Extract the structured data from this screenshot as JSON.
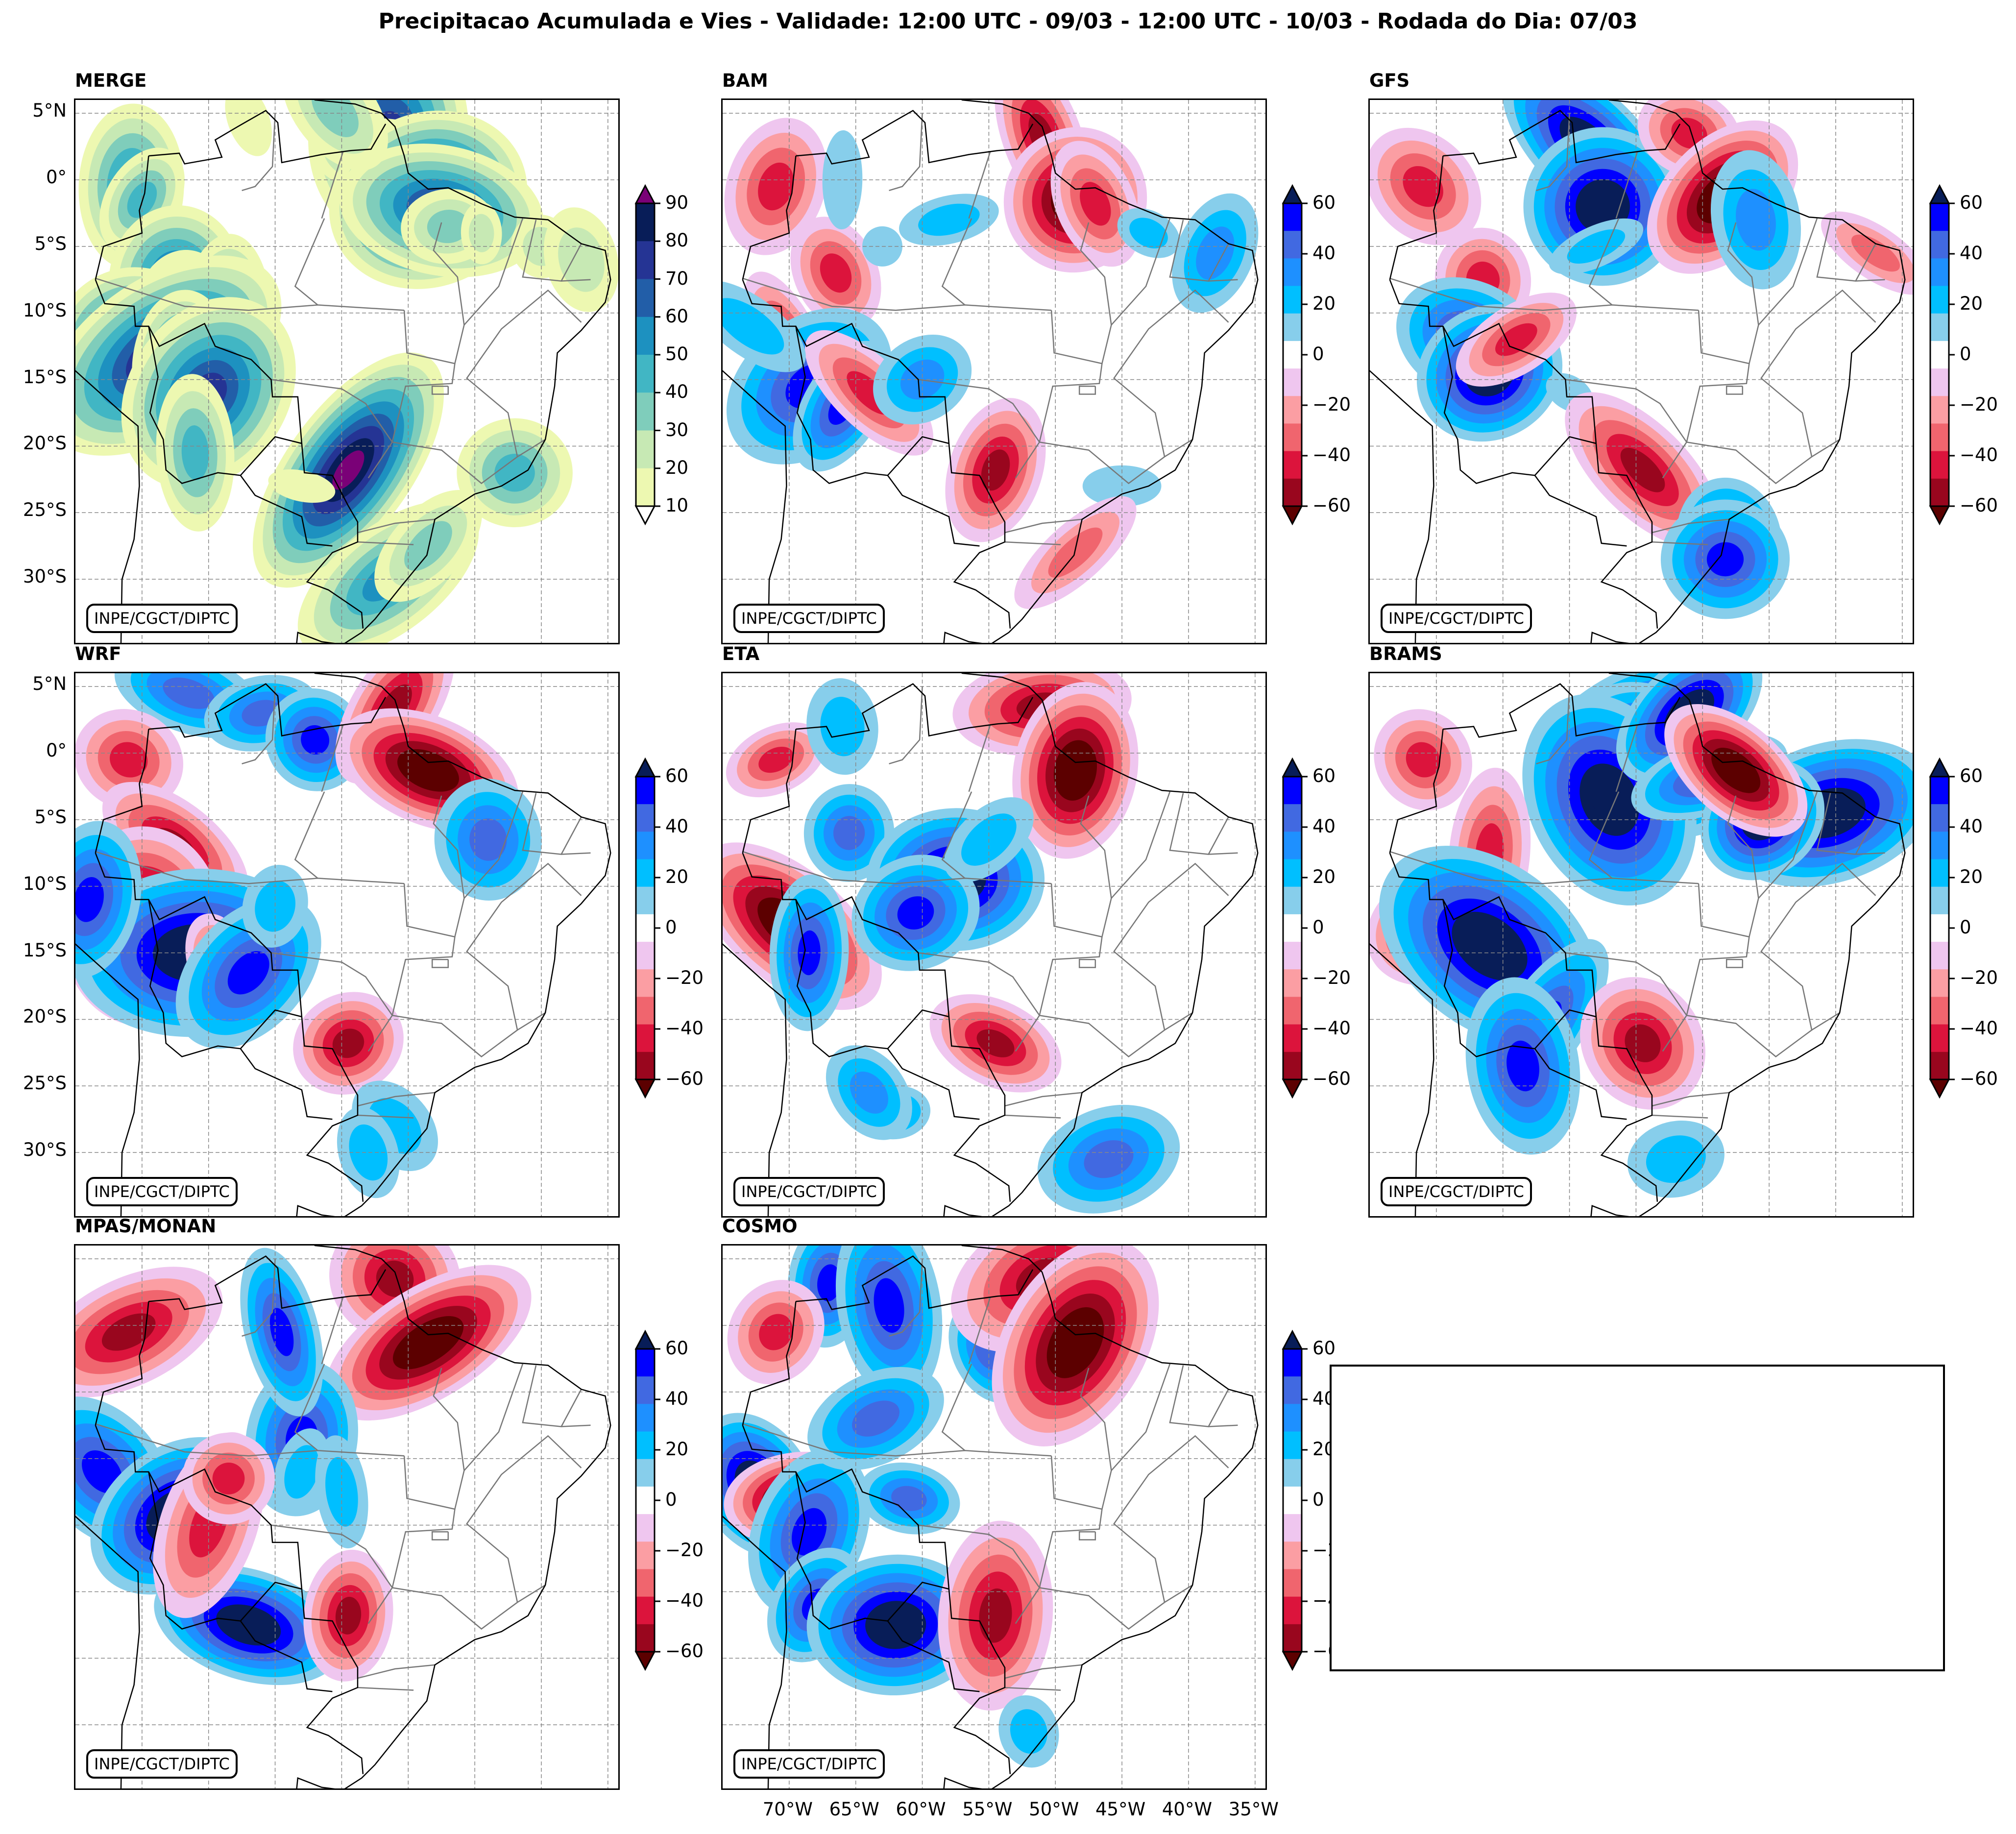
{
  "figure": {
    "title": "Precipitacao Acumulada e Vies - Validade: 12:00 UTC - 09/03 - 12:00 UTC - 10/03 - Rodada do Dia: 07/03",
    "credit_label": "INPE/CGCT/DIPTC"
  },
  "chart_data": {
    "type": "heatmap",
    "title": "Precipitacao Acumulada e Vies - Validade: 12:00 UTC - 09/03 - 12:00 UTC - 10/03 - Rodada do Dia: 07/03",
    "xlabel": "",
    "ylabel": "",
    "x_range_lon": [
      -75,
      -34
    ],
    "y_range_lat": [
      -35,
      6
    ],
    "grid": true,
    "x_ticks": [
      "70°W",
      "65°W",
      "60°W",
      "55°W",
      "50°W",
      "45°W",
      "40°W",
      "35°W"
    ],
    "x_tick_values": [
      -70,
      -65,
      -60,
      -55,
      -50,
      -45,
      -40,
      -35
    ],
    "y_ticks": [
      "5°N",
      "0°",
      "5°S",
      "10°S",
      "15°S",
      "20°S",
      "25°S",
      "30°S"
    ],
    "y_tick_values": [
      5,
      0,
      -5,
      -10,
      -15,
      -20,
      -25,
      -30
    ],
    "colorbars": {
      "precip": {
        "levels": [
          10,
          20,
          30,
          40,
          50,
          60,
          70,
          80,
          90
        ],
        "tick_labels": [
          "90",
          "80",
          "70",
          "60",
          "50",
          "40",
          "30",
          "20",
          "10"
        ],
        "colors": [
          "#edf8b1",
          "#c7e9b4",
          "#7fcdbb",
          "#41b6c4",
          "#1d91c0",
          "#225ea8",
          "#253494",
          "#081d58"
        ],
        "over_color": "#7a0177",
        "under_color": "#ffffff",
        "extend": "both"
      },
      "bias": {
        "levels": [
          -60,
          -50,
          -40,
          -30,
          -20,
          -10,
          10,
          20,
          30,
          40,
          50,
          60
        ],
        "tick_labels": [
          "60",
          "40",
          "20",
          "0",
          "−20",
          "−40",
          "−60"
        ],
        "colors": [
          "#99061e",
          "#dc143c",
          "#f0656e",
          "#fb9ea3",
          "#efc6ef",
          "#ffffff",
          "#87ceeb",
          "#00bfff",
          "#1e90ff",
          "#4169e1",
          "#0000ff"
        ],
        "over_color": "#081d58",
        "under_color": "#5c0000",
        "extend": "both"
      }
    },
    "panels": [
      {
        "name": "MERGE",
        "field": "accumulated precipitation (mm)",
        "colorbar": "precip",
        "features": [
          {
            "lon": -51.5,
            "lat": 3.5,
            "value": 75
          },
          {
            "lon": -51,
            "lat": 1.5,
            "value": 55
          },
          {
            "lon": -48.5,
            "lat": -1.5,
            "value": 95
          },
          {
            "lon": -47.5,
            "lat": -2.3,
            "value": 80
          },
          {
            "lon": -47,
            "lat": -3.5,
            "value": 35
          },
          {
            "lon": -44.5,
            "lat": -4,
            "value": 25
          },
          {
            "lon": -40,
            "lat": -5,
            "value": 25
          },
          {
            "lon": -37,
            "lat": -6,
            "value": 30
          },
          {
            "lon": -70.8,
            "lat": -0.5,
            "value": 60
          },
          {
            "lon": -70,
            "lat": -1.5,
            "value": 45
          },
          {
            "lon": -67.5,
            "lat": -7.5,
            "value": 70
          },
          {
            "lon": -67,
            "lat": -9,
            "value": 40
          },
          {
            "lon": -68,
            "lat": -10.5,
            "value": 45
          },
          {
            "lon": -63.8,
            "lat": -11.5,
            "value": 65
          },
          {
            "lon": -70.5,
            "lat": -13,
            "value": 95
          },
          {
            "lon": -68.5,
            "lat": -13.2,
            "value": 92
          },
          {
            "lon": -67,
            "lat": -14,
            "value": 70
          },
          {
            "lon": -65,
            "lat": -16,
            "value": 80
          },
          {
            "lon": -66,
            "lat": -20.5,
            "value": 45
          },
          {
            "lon": -54.5,
            "lat": -21.8,
            "value": 95
          },
          {
            "lon": -42,
            "lat": -22,
            "value": 45
          },
          {
            "lon": -51.5,
            "lat": -30,
            "value": 55
          },
          {
            "lon": -48.5,
            "lat": -27.5,
            "value": 35
          },
          {
            "lon": -58,
            "lat": -23,
            "value": 20
          },
          {
            "lon": -62,
            "lat": 4.5,
            "value": 20
          },
          {
            "lon": -55.5,
            "lat": 5.2,
            "value": 40
          }
        ]
      },
      {
        "name": "BAM",
        "field": "bias (mm)",
        "colorbar": "bias",
        "features": [
          {
            "lon": -51,
            "lat": 3.2,
            "value": -55
          },
          {
            "lon": -48.5,
            "lat": -1.5,
            "value": -65
          },
          {
            "lon": -47,
            "lat": -1.8,
            "value": -50
          },
          {
            "lon": -71,
            "lat": -0.5,
            "value": -45
          },
          {
            "lon": -66.5,
            "lat": -7,
            "value": -45
          },
          {
            "lon": -70,
            "lat": -13,
            "value": -60
          },
          {
            "lon": -67.5,
            "lat": -14.2,
            "value": -50
          },
          {
            "lon": -68.5,
            "lat": -15.5,
            "value": 55
          },
          {
            "lon": -66,
            "lat": -17,
            "value": 60
          },
          {
            "lon": -64,
            "lat": -16,
            "value": -45
          },
          {
            "lon": -54.5,
            "lat": -21.8,
            "value": -60
          },
          {
            "lon": -58,
            "lat": -3,
            "value": 25
          },
          {
            "lon": -63,
            "lat": -5,
            "value": 20
          },
          {
            "lon": -66,
            "lat": 0,
            "value": 15
          },
          {
            "lon": -60,
            "lat": -15,
            "value": 35
          },
          {
            "lon": -38,
            "lat": -5.5,
            "value": 35
          },
          {
            "lon": -43,
            "lat": -4,
            "value": 25
          },
          {
            "lon": -45,
            "lat": -23,
            "value": 15
          },
          {
            "lon": -48.5,
            "lat": -28,
            "value": -40
          },
          {
            "lon": -73,
            "lat": -11,
            "value": 30
          }
        ]
      },
      {
        "name": "GFS",
        "field": "bias (mm)",
        "colorbar": "bias",
        "features": [
          {
            "lon": -58.5,
            "lat": 2.5,
            "value": 65
          },
          {
            "lon": -57.5,
            "lat": -2,
            "value": 65
          },
          {
            "lon": -58,
            "lat": -5,
            "value": 30
          },
          {
            "lon": -51,
            "lat": 3.5,
            "value": -45
          },
          {
            "lon": -48.5,
            "lat": -1.3,
            "value": -65
          },
          {
            "lon": -71,
            "lat": -0.5,
            "value": -50
          },
          {
            "lon": -66.5,
            "lat": -7.5,
            "value": -50
          },
          {
            "lon": -67.5,
            "lat": -12,
            "value": 60
          },
          {
            "lon": -66,
            "lat": -14.5,
            "value": 65
          },
          {
            "lon": -64,
            "lat": -12,
            "value": -50
          },
          {
            "lon": -60,
            "lat": -16,
            "value": 20
          },
          {
            "lon": -54.5,
            "lat": -21.8,
            "value": -60
          },
          {
            "lon": -48,
            "lat": -27,
            "value": 60
          },
          {
            "lon": -48.3,
            "lat": -28.5,
            "value": 55
          },
          {
            "lon": -37,
            "lat": -5.5,
            "value": -35
          },
          {
            "lon": -46,
            "lat": -3,
            "value": 35
          }
        ]
      },
      {
        "name": "WRF",
        "field": "bias (mm)",
        "colorbar": "bias",
        "features": [
          {
            "lon": -66.5,
            "lat": 4.5,
            "value": 45
          },
          {
            "lon": -61,
            "lat": 3,
            "value": 50
          },
          {
            "lon": -57,
            "lat": 1,
            "value": 55
          },
          {
            "lon": -51,
            "lat": 3.5,
            "value": -55
          },
          {
            "lon": -48.5,
            "lat": -1.3,
            "value": -65
          },
          {
            "lon": -71,
            "lat": -0.5,
            "value": -50
          },
          {
            "lon": -67.5,
            "lat": -7,
            "value": -60
          },
          {
            "lon": -70,
            "lat": -13,
            "value": -65
          },
          {
            "lon": -66,
            "lat": -15,
            "value": 65
          },
          {
            "lon": -64,
            "lat": -16,
            "value": -45
          },
          {
            "lon": -62,
            "lat": -16.5,
            "value": 55
          },
          {
            "lon": -60,
            "lat": -11.5,
            "value": 25
          },
          {
            "lon": -54.5,
            "lat": -21.8,
            "value": -60
          },
          {
            "lon": -44,
            "lat": -6.5,
            "value": 45
          },
          {
            "lon": -74,
            "lat": -11,
            "value": 60
          },
          {
            "lon": -51,
            "lat": -28,
            "value": 25
          },
          {
            "lon": -53,
            "lat": -30,
            "value": 30
          }
        ]
      },
      {
        "name": "ETA",
        "field": "bias (mm)",
        "colorbar": "bias",
        "features": [
          {
            "lon": -51,
            "lat": 3.5,
            "value": -55
          },
          {
            "lon": -48.5,
            "lat": -1.3,
            "value": -65
          },
          {
            "lon": -71,
            "lat": -0.5,
            "value": -45
          },
          {
            "lon": -70,
            "lat": -13,
            "value": -65
          },
          {
            "lon": -68.5,
            "lat": -15,
            "value": 55
          },
          {
            "lon": -65.5,
            "lat": -6,
            "value": 50
          },
          {
            "lon": -57.5,
            "lat": -9.5,
            "value": 65
          },
          {
            "lon": -60.5,
            "lat": -12,
            "value": 60
          },
          {
            "lon": -54.5,
            "lat": -21.8,
            "value": -60
          },
          {
            "lon": -62,
            "lat": -27,
            "value": 35
          },
          {
            "lon": -64,
            "lat": -25.5,
            "value": 40
          },
          {
            "lon": -46,
            "lat": -30.5,
            "value": 45
          },
          {
            "lon": -55,
            "lat": -6.5,
            "value": 25
          },
          {
            "lon": -66,
            "lat": 2,
            "value": 30
          }
        ]
      },
      {
        "name": "BRAMS",
        "field": "bias (mm)",
        "colorbar": "bias",
        "features": [
          {
            "lon": -55.5,
            "lat": 1,
            "value": 65
          },
          {
            "lon": -53.5,
            "lat": -0.5,
            "value": 65
          },
          {
            "lon": -57,
            "lat": -3.5,
            "value": 65
          },
          {
            "lon": -51,
            "lat": 3,
            "value": 65
          },
          {
            "lon": -49.5,
            "lat": -1.8,
            "value": 60
          },
          {
            "lon": -40.5,
            "lat": -4.5,
            "value": 65
          },
          {
            "lon": -45.5,
            "lat": -5,
            "value": 65
          },
          {
            "lon": -47.5,
            "lat": -1.3,
            "value": -65
          },
          {
            "lon": -71,
            "lat": -0.5,
            "value": -50
          },
          {
            "lon": -66,
            "lat": -7.5,
            "value": -45
          },
          {
            "lon": -70,
            "lat": -13,
            "value": -65
          },
          {
            "lon": -66,
            "lat": -14.5,
            "value": 65
          },
          {
            "lon": -62,
            "lat": -20.5,
            "value": 55
          },
          {
            "lon": -63.5,
            "lat": -23.5,
            "value": 60
          },
          {
            "lon": -54.5,
            "lat": -21.8,
            "value": -60
          },
          {
            "lon": -52,
            "lat": -30.5,
            "value": 30
          }
        ]
      },
      {
        "name": "MPAS/MONAN",
        "field": "bias (mm)",
        "colorbar": "bias",
        "features": [
          {
            "lon": -51,
            "lat": 3.5,
            "value": -55
          },
          {
            "lon": -48.5,
            "lat": -1.3,
            "value": -65
          },
          {
            "lon": -71,
            "lat": -0.5,
            "value": -55
          },
          {
            "lon": -70,
            "lat": -13,
            "value": -65
          },
          {
            "lon": -73,
            "lat": -11,
            "value": 60
          },
          {
            "lon": -67.5,
            "lat": -14.3,
            "value": 65
          },
          {
            "lon": -58,
            "lat": -8.5,
            "value": 60
          },
          {
            "lon": -58,
            "lat": -11,
            "value": 30
          },
          {
            "lon": -55,
            "lat": -12.5,
            "value": 30
          },
          {
            "lon": -62,
            "lat": -22.5,
            "value": 65
          },
          {
            "lon": -59.5,
            "lat": -0.5,
            "value": 60
          },
          {
            "lon": -54.5,
            "lat": -21.8,
            "value": -60
          },
          {
            "lon": -65,
            "lat": -15,
            "value": -50
          },
          {
            "lon": -63.5,
            "lat": -11.5,
            "value": -50
          }
        ]
      },
      {
        "name": "COSMO",
        "field": "bias (mm)",
        "colorbar": "bias",
        "features": [
          {
            "lon": -67,
            "lat": 3.2,
            "value": 60
          },
          {
            "lon": -62.5,
            "lat": 1.5,
            "value": 60
          },
          {
            "lon": -55,
            "lat": -2,
            "value": 50
          },
          {
            "lon": -51,
            "lat": 3.5,
            "value": -60
          },
          {
            "lon": -48.5,
            "lat": -1.3,
            "value": -65
          },
          {
            "lon": -71,
            "lat": -0.5,
            "value": -50
          },
          {
            "lon": -72.5,
            "lat": -12,
            "value": 65
          },
          {
            "lon": -69.5,
            "lat": -13,
            "value": -65
          },
          {
            "lon": -68.5,
            "lat": -15.5,
            "value": 60
          },
          {
            "lon": -68,
            "lat": -21,
            "value": 60
          },
          {
            "lon": -62,
            "lat": -22.5,
            "value": 65
          },
          {
            "lon": -63.5,
            "lat": -7,
            "value": 50
          },
          {
            "lon": -54.5,
            "lat": -21.8,
            "value": -60
          },
          {
            "lon": -52,
            "lat": -30.5,
            "value": 30
          },
          {
            "lon": -61,
            "lat": -13,
            "value": 45
          }
        ]
      }
    ]
  },
  "axes": {
    "y_labels": [
      "5°N",
      "0°",
      "5°S",
      "10°S",
      "15°S",
      "20°S",
      "25°S",
      "30°S"
    ],
    "x_labels": [
      "70°W",
      "65°W",
      "60°W",
      "55°W",
      "50°W",
      "45°W",
      "40°W",
      "35°W"
    ]
  },
  "colorbar_ticks": {
    "precip": [
      "90",
      "80",
      "70",
      "60",
      "50",
      "40",
      "30",
      "20",
      "10"
    ],
    "bias": [
      "60",
      "40",
      "20",
      "0",
      "−20",
      "−40",
      "−60"
    ]
  },
  "panel_titles": [
    "MERGE",
    "BAM",
    "GFS",
    "WRF",
    "ETA",
    "BRAMS",
    "MPAS/MONAN",
    "COSMO"
  ]
}
